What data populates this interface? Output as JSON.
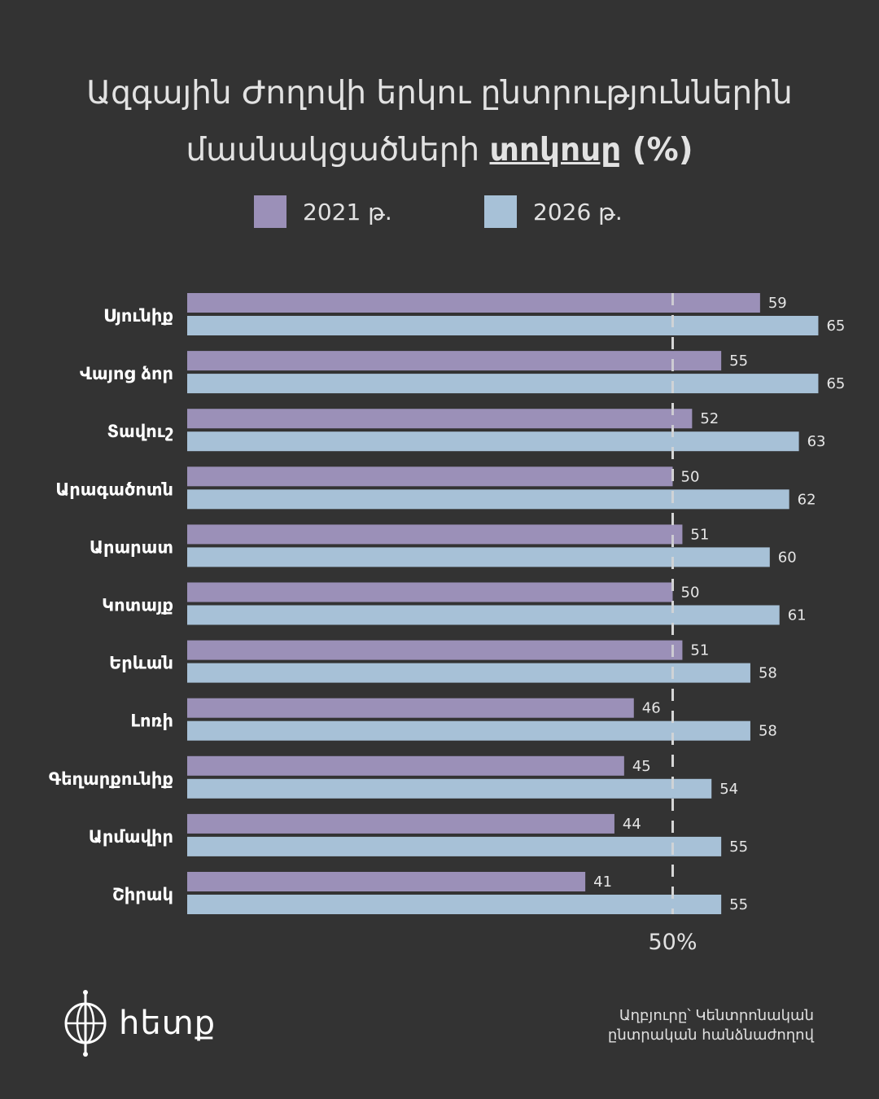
{
  "title": {
    "line1": "Ազգային Ժողովի երկու ընտրություններին",
    "line2_prefix": "մասնակցածների ",
    "line2_bold": "տոկոսը",
    "line2_suffix": " (%)"
  },
  "colors": {
    "series2021": "#9b90b8",
    "series2026": "#a7c1d7",
    "background": "#333333",
    "reference": "#d6d6d6"
  },
  "chart_data": {
    "type": "bar",
    "orientation": "horizontal",
    "categories": [
      "Սյունիք",
      "Վայոց ձոր",
      "Տավուշ",
      "Արագածոտն",
      "Արարատ",
      "Կոտայք",
      "Երևան",
      "Լոռի",
      "Գեղարքունիք",
      "Արմավիր",
      "Շիրակ"
    ],
    "series": [
      {
        "name": "2021 թ.",
        "values": [
          59,
          55,
          52,
          50,
          51,
          50,
          51,
          46,
          45,
          44,
          41
        ]
      },
      {
        "name": "2026 թ.",
        "values": [
          65,
          65,
          63,
          62,
          60,
          61,
          58,
          58,
          54,
          55,
          55
        ]
      }
    ],
    "reference_line": {
      "value": 50,
      "label": "50%"
    },
    "xlim": [
      0,
      100
    ],
    "legend_position": "top-center",
    "grid": false
  },
  "branding": {
    "logo_text": "հետք",
    "logo_icon": "globe-logo-icon"
  },
  "source": {
    "line1": "Աղբյուրը՝ Կենտրոնական",
    "line2": "ընտրական հանձնաժողով"
  }
}
